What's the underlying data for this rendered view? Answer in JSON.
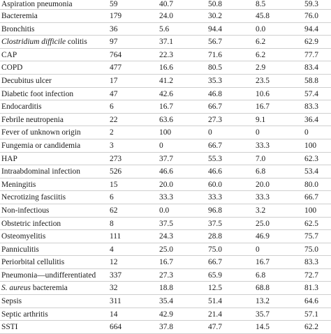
{
  "table": {
    "rows": [
      {
        "diagnosis_pre": "",
        "diagnosis_italic": "",
        "diagnosis": "Aspiration pneumonia",
        "n": "59",
        "v1": "40.7",
        "v2": "50.8",
        "v3": "8.5",
        "v4": "59.3"
      },
      {
        "diagnosis_pre": "",
        "diagnosis_italic": "",
        "diagnosis": "Bacteremia",
        "n": "179",
        "v1": "24.0",
        "v2": "30.2",
        "v3": "45.8",
        "v4": "76.0"
      },
      {
        "diagnosis_pre": "",
        "diagnosis_italic": "",
        "diagnosis": "Bronchitis",
        "n": "36",
        "v1": "5.6",
        "v2": "94.4",
        "v3": "0.0",
        "v4": "94.4"
      },
      {
        "diagnosis_pre": "",
        "diagnosis_italic": "Clostridium difficile",
        "diagnosis": " colitis",
        "n": "97",
        "v1": "37.1",
        "v2": "56.7",
        "v3": "6.2",
        "v4": "62.9"
      },
      {
        "diagnosis_pre": "",
        "diagnosis_italic": "",
        "diagnosis": "CAP",
        "n": "764",
        "v1": "22.3",
        "v2": "71.6",
        "v3": "6.2",
        "v4": "77.7"
      },
      {
        "diagnosis_pre": "",
        "diagnosis_italic": "",
        "diagnosis": "COPD",
        "n": "477",
        "v1": "16.6",
        "v2": "80.5",
        "v3": "2.9",
        "v4": "83.4"
      },
      {
        "diagnosis_pre": "",
        "diagnosis_italic": "",
        "diagnosis": "Decubitus ulcer",
        "n": "17",
        "v1": "41.2",
        "v2": "35.3",
        "v3": "23.5",
        "v4": "58.8"
      },
      {
        "diagnosis_pre": "",
        "diagnosis_italic": "",
        "diagnosis": "Diabetic foot infection",
        "n": "47",
        "v1": "42.6",
        "v2": "46.8",
        "v3": "10.6",
        "v4": "57.4"
      },
      {
        "diagnosis_pre": "",
        "diagnosis_italic": "",
        "diagnosis": "Endocarditis",
        "n": "6",
        "v1": "16.7",
        "v2": "66.7",
        "v3": "16.7",
        "v4": "83.3"
      },
      {
        "diagnosis_pre": "",
        "diagnosis_italic": "",
        "diagnosis": "Febrile neutropenia",
        "n": "22",
        "v1": "63.6",
        "v2": "27.3",
        "v3": "9.1",
        "v4": "36.4"
      },
      {
        "diagnosis_pre": "",
        "diagnosis_italic": "",
        "diagnosis": "Fever of unknown origin",
        "n": "2",
        "v1": "100",
        "v2": "0",
        "v3": "0",
        "v4": "0"
      },
      {
        "diagnosis_pre": "",
        "diagnosis_italic": "",
        "diagnosis": "Fungemia or candidemia",
        "n": "3",
        "v1": "0",
        "v2": "66.7",
        "v3": "33.3",
        "v4": "100"
      },
      {
        "diagnosis_pre": "",
        "diagnosis_italic": "",
        "diagnosis": "HAP",
        "n": "273",
        "v1": "37.7",
        "v2": "55.3",
        "v3": "7.0",
        "v4": "62.3"
      },
      {
        "diagnosis_pre": "",
        "diagnosis_italic": "",
        "diagnosis": "Intraabdominal infection",
        "n": "526",
        "v1": "46.6",
        "v2": "46.6",
        "v3": "6.8",
        "v4": "53.4"
      },
      {
        "diagnosis_pre": "",
        "diagnosis_italic": "",
        "diagnosis": "Meningitis",
        "n": "15",
        "v1": "20.0",
        "v2": "60.0",
        "v3": "20.0",
        "v4": "80.0"
      },
      {
        "diagnosis_pre": "",
        "diagnosis_italic": "",
        "diagnosis": "Necrotizing fasciitis",
        "n": "6",
        "v1": "33.3",
        "v2": "33.3",
        "v3": "33.3",
        "v4": "66.7"
      },
      {
        "diagnosis_pre": "",
        "diagnosis_italic": "",
        "diagnosis": "Non-infectious",
        "n": "62",
        "v1": "0.0",
        "v2": "96.8",
        "v3": "3.2",
        "v4": "100"
      },
      {
        "diagnosis_pre": "",
        "diagnosis_italic": "",
        "diagnosis": "Obstetric infection",
        "n": "8",
        "v1": "37.5",
        "v2": "37.5",
        "v3": "25.0",
        "v4": "62.5"
      },
      {
        "diagnosis_pre": "",
        "diagnosis_italic": "",
        "diagnosis": "Osteomyelitis",
        "n": "111",
        "v1": "24.3",
        "v2": "28.8",
        "v3": "46.9",
        "v4": "75.7"
      },
      {
        "diagnosis_pre": "",
        "diagnosis_italic": "",
        "diagnosis": "Panniculitis",
        "n": "4",
        "v1": "25.0",
        "v2": "75.0",
        "v3": "0",
        "v4": "75.0"
      },
      {
        "diagnosis_pre": "",
        "diagnosis_italic": "",
        "diagnosis": "Periorbital cellulitis",
        "n": "12",
        "v1": "16.7",
        "v2": "66.7",
        "v3": "16.7",
        "v4": "83.3"
      },
      {
        "diagnosis_pre": "",
        "diagnosis_italic": "",
        "diagnosis": "Pneumonia—undifferentiated",
        "n": "337",
        "v1": "27.3",
        "v2": "65.9",
        "v3": "6.8",
        "v4": "72.7"
      },
      {
        "diagnosis_pre": "",
        "diagnosis_italic": "S. aureus",
        "diagnosis": " bacteremia",
        "n": "32",
        "v1": "18.8",
        "v2": "12.5",
        "v3": "68.8",
        "v4": "81.3"
      },
      {
        "diagnosis_pre": "",
        "diagnosis_italic": "",
        "diagnosis": "Sepsis",
        "n": "311",
        "v1": "35.4",
        "v2": "51.4",
        "v3": "13.2",
        "v4": "64.6"
      },
      {
        "diagnosis_pre": "",
        "diagnosis_italic": "",
        "diagnosis": "Septic arthritis",
        "n": "14",
        "v1": "42.9",
        "v2": "21.4",
        "v3": "35.7",
        "v4": "57.1"
      },
      {
        "diagnosis_pre": "",
        "diagnosis_italic": "",
        "diagnosis": "SSTI",
        "n": "664",
        "v1": "37.8",
        "v2": "47.7",
        "v3": "14.5",
        "v4": "62.2"
      }
    ]
  }
}
